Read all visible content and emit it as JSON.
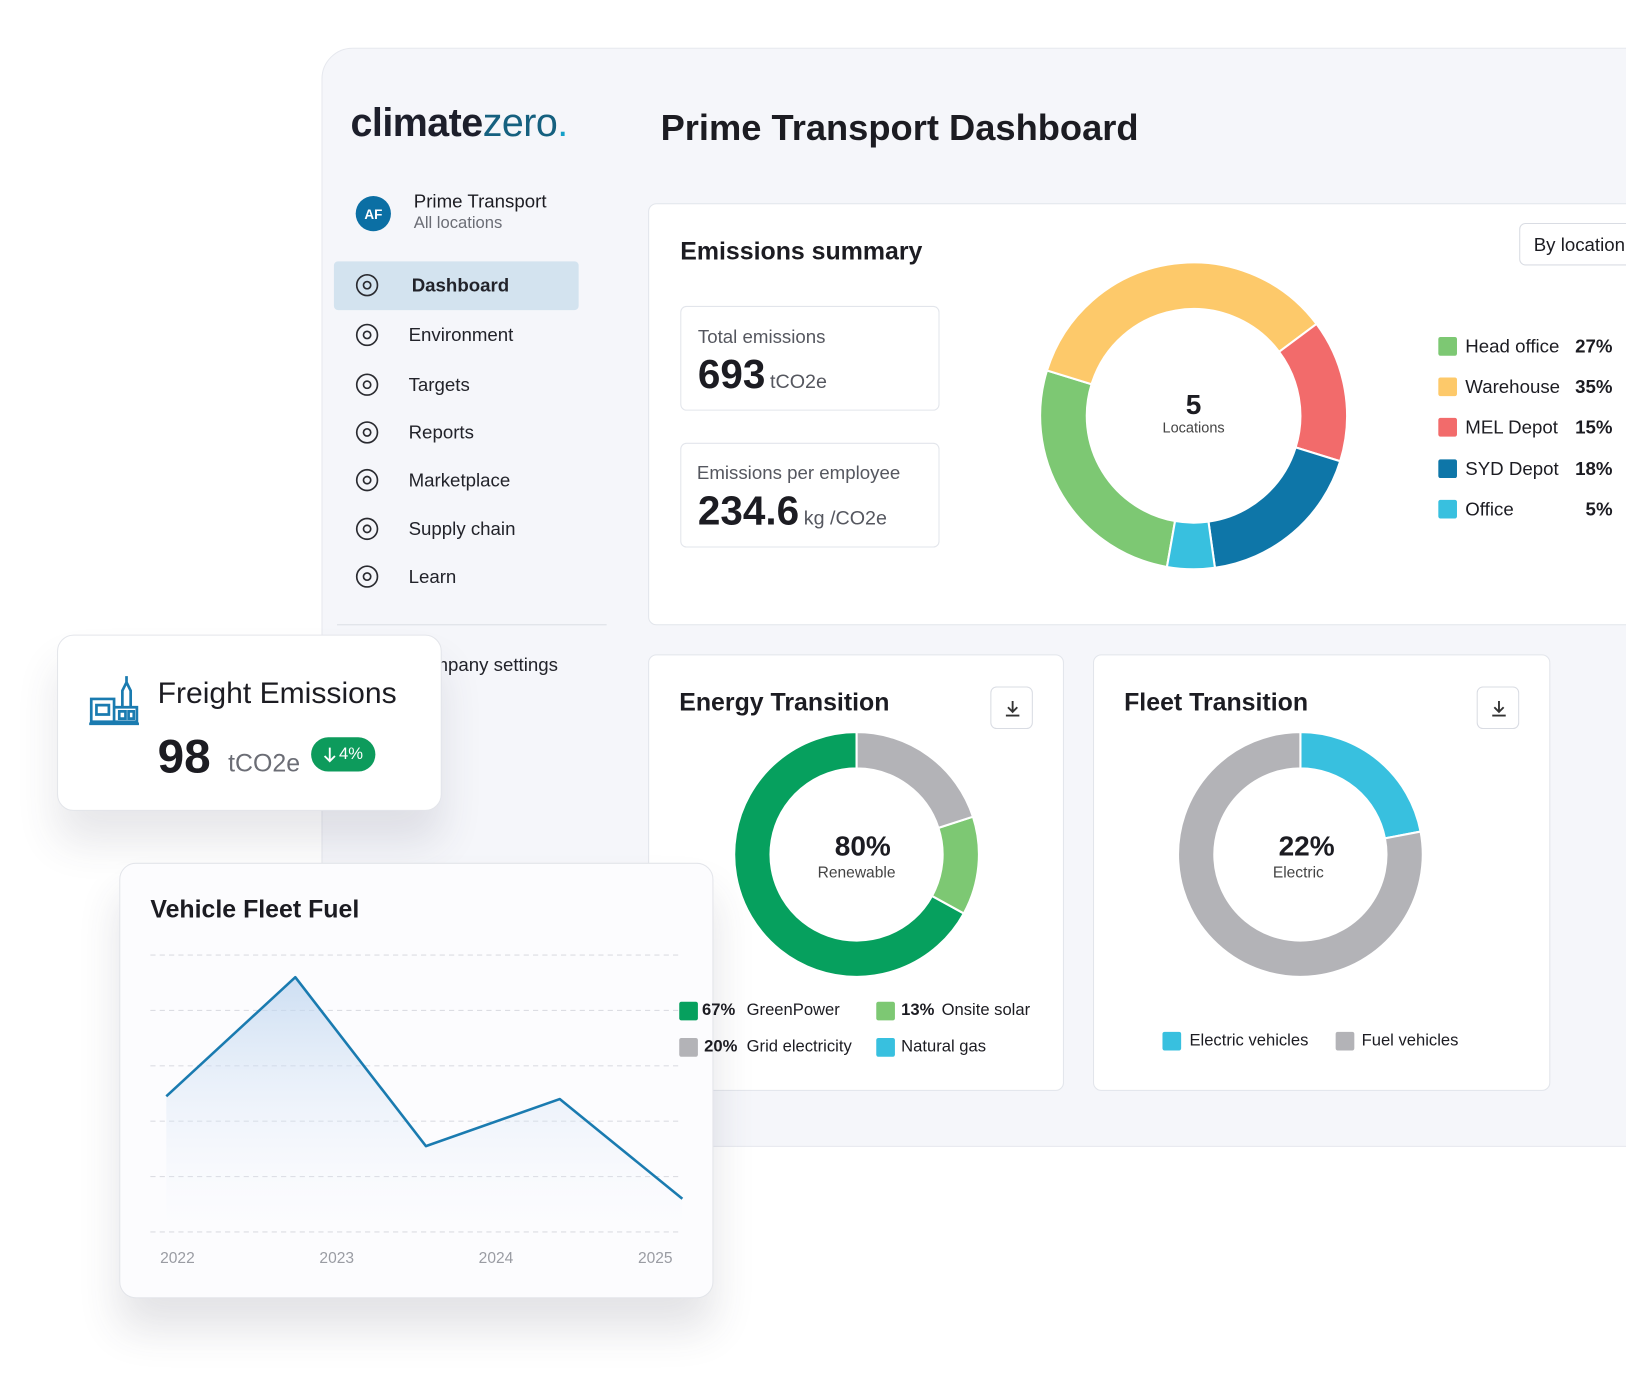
{
  "logo": {
    "brand": "climate",
    "accent": "zero"
  },
  "account": {
    "initials": "AF",
    "name": "Prime Transport",
    "scope": "All locations"
  },
  "nav": {
    "items": [
      "Dashboard",
      "Environment",
      "Targets",
      "Reports",
      "Marketplace",
      "Supply chain",
      "Learn"
    ],
    "settings": "Company settings"
  },
  "header": {
    "title": "Prime Transport Dashboard"
  },
  "emissions_summary": {
    "title": "Emissions summary",
    "filter_button": "By location",
    "total": {
      "label": "Total emissions",
      "value": 693,
      "unit": "tCO2e"
    },
    "per_employee": {
      "label": "Emissions per employee",
      "value": 234.6,
      "unit": "kg /CO2e"
    },
    "chart_data": {
      "type": "donut",
      "center_value": 5,
      "center_label": "Locations",
      "categories": [
        "Head office",
        "Warehouse",
        "MEL Depot",
        "SYD Depot",
        "Office"
      ],
      "values": [
        27,
        35,
        15,
        18,
        5
      ],
      "value_labels": [
        "27%",
        "35%",
        "15%",
        "18%",
        "5%"
      ],
      "colors": [
        "#7dc873",
        "#fdc96a",
        "#f26b6b",
        "#0e76a8",
        "#38c0df"
      ]
    }
  },
  "energy_transition": {
    "title": "Energy Transition",
    "chart_data": {
      "type": "donut",
      "clockwise": false,
      "center_value": 80,
      "center_value_label": "80%",
      "center_label": "Renewable",
      "categories": [
        "GreenPower",
        "Onsite solar",
        "Grid electricity",
        "Natural gas"
      ],
      "values": [
        67,
        13,
        20,
        0
      ],
      "value_labels": [
        "67%",
        "13%",
        "20%",
        null
      ],
      "colors": [
        "#06a05e",
        "#7dc873",
        "#b3b3b7",
        "#38c0df"
      ]
    }
  },
  "fleet_transition": {
    "title": "Fleet Transition",
    "chart_data": {
      "type": "donut",
      "clockwise": true,
      "center_value": 22,
      "center_value_label": "22%",
      "center_label": "Electric",
      "categories": [
        "Electric vehicles",
        "Fuel vehicles"
      ],
      "values": [
        22,
        78
      ],
      "colors": [
        "#38c0df",
        "#b3b3b7"
      ]
    }
  },
  "freight_emissions": {
    "title": "Freight Emissions",
    "value": 98,
    "unit": "tCO2e",
    "change": {
      "value": 4,
      "label": "4%",
      "direction": "down"
    }
  },
  "vehicle_fleet_fuel": {
    "chart_data": {
      "type": "line",
      "title": "Vehicle Fleet Fuel",
      "x": [
        2021.93,
        2022.74,
        2023.56,
        2024.4,
        2025.17
      ],
      "values": [
        2.45,
        4.6,
        1.55,
        2.4,
        0.6
      ],
      "xlim": [
        2021.83,
        2025.17
      ],
      "xticks": [
        2022,
        2023,
        2024,
        2025
      ],
      "ylim": [
        0,
        5
      ],
      "ygrid": [
        0,
        1,
        2,
        3,
        4,
        5
      ],
      "color": "#1a7bb0"
    }
  }
}
